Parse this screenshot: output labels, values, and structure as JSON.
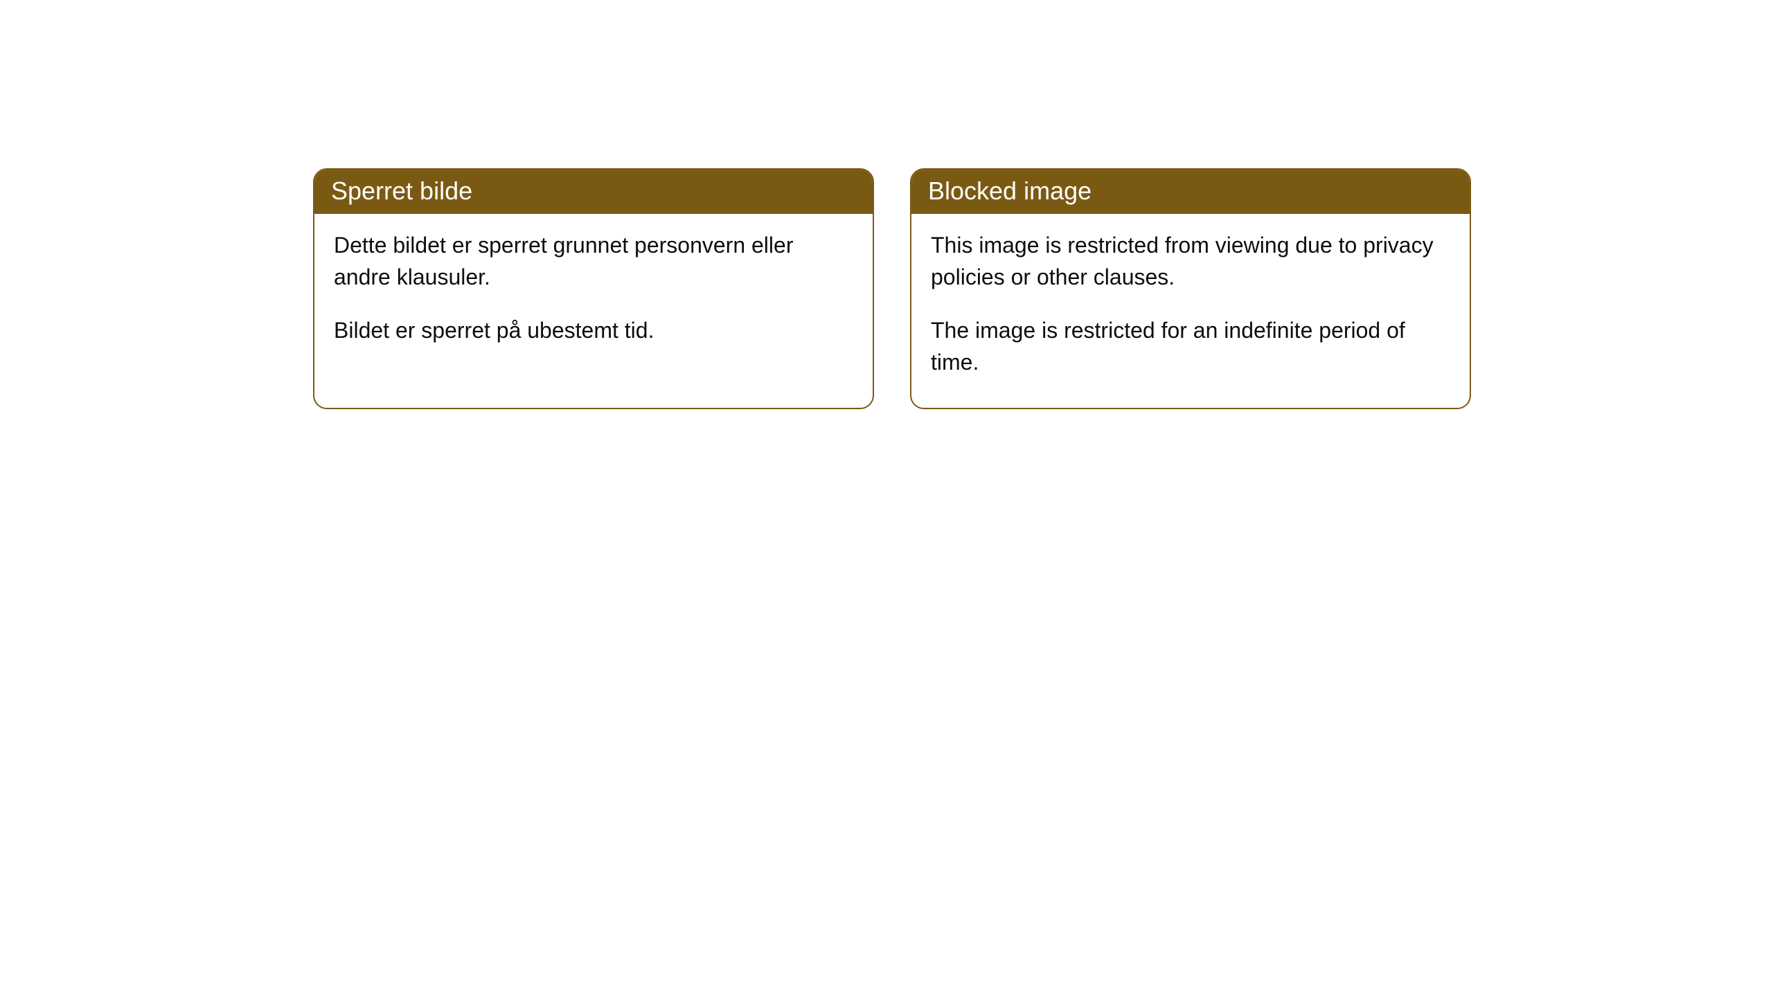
{
  "cards": [
    {
      "title": "Sperret bilde",
      "paragraph1": "Dette bildet er sperret grunnet personvern eller andre klausuler.",
      "paragraph2": "Bildet er sperret på ubestemt tid."
    },
    {
      "title": "Blocked image",
      "paragraph1": "This image is restricted from viewing due to privacy policies or other clauses.",
      "paragraph2": "The image is restricted for an indefinite period of time."
    }
  ],
  "styling": {
    "header_background": "#7a5a13",
    "header_text_color": "#ffffff",
    "card_border_color": "#7a5a13",
    "card_background": "#ffffff",
    "body_text_color": "#0e0e0e",
    "page_background": "#ffffff",
    "border_radius": 20,
    "title_fontsize": 36,
    "body_fontsize": 32
  }
}
